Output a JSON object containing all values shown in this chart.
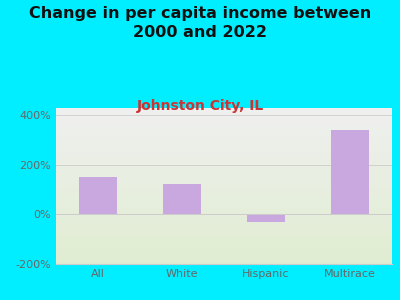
{
  "title": "Change in per capita income between\n2000 and 2022",
  "subtitle": "Johnston City, IL",
  "categories": [
    "All",
    "White",
    "Hispanic",
    "Multirace"
  ],
  "values": [
    150,
    125,
    -30,
    340
  ],
  "bar_color": "#c9a8e0",
  "title_fontsize": 11.5,
  "subtitle_fontsize": 10,
  "subtitle_color": "#cc3333",
  "background_color": "#00eeff",
  "ylim": [
    -200,
    430
  ],
  "yticks": [
    -200,
    0,
    200,
    400
  ],
  "ytick_labels": [
    "-200%",
    "0%",
    "200%",
    "400%"
  ],
  "grid_color": "#cccccc",
  "tick_color": "#666666",
  "bar_width": 0.45
}
